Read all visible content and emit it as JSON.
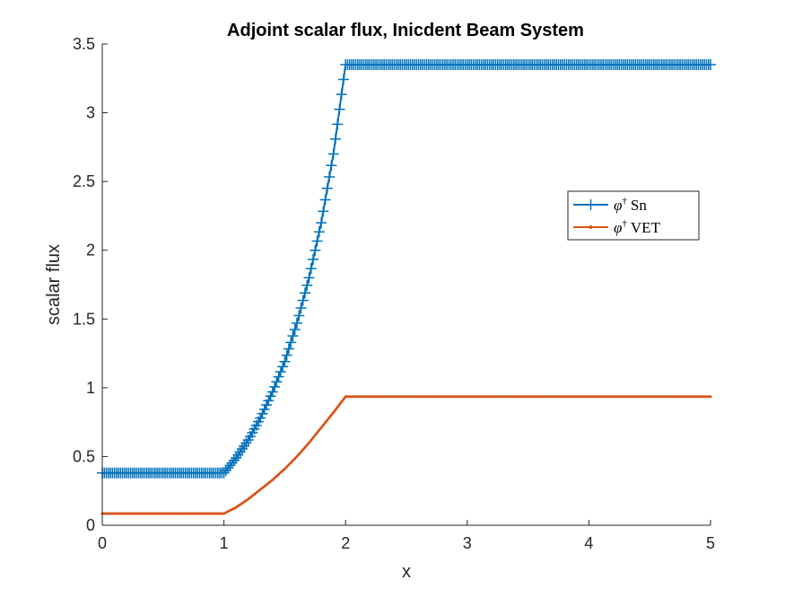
{
  "chart_data": {
    "type": "line",
    "title": "Adjoint scalar flux, Inicdent Beam System",
    "xlabel": "x",
    "ylabel": "scalar flux",
    "xlim": [
      0,
      5
    ],
    "ylim": [
      0,
      3.5
    ],
    "x_ticks": [
      0,
      1,
      2,
      3,
      4,
      5
    ],
    "x_tick_labels": [
      "0",
      "1",
      "2",
      "3",
      "4",
      "5"
    ],
    "y_ticks": [
      0,
      0.5,
      1,
      1.5,
      2,
      2.5,
      3,
      3.5
    ],
    "y_tick_labels": [
      "0",
      "0.5",
      "1",
      "1.5",
      "2",
      "2.5",
      "3",
      "3.5"
    ],
    "grid": false,
    "legend_position": "right",
    "series": [
      {
        "name": "Sn",
        "symbol": "φ",
        "color": "#0072BD",
        "marker": "+",
        "x": [
          0,
          1,
          1.1,
          1.2,
          1.3,
          1.4,
          1.5,
          1.6,
          1.7,
          1.8,
          1.9,
          2,
          5
        ],
        "y": [
          0.38,
          0.38,
          0.49,
          0.62,
          0.78,
          0.97,
          1.19,
          1.47,
          1.8,
          2.2,
          2.7,
          3.35,
          3.35
        ]
      },
      {
        "name": "VET",
        "symbol": "φ",
        "color": "#D95319",
        "marker": ".",
        "x": [
          0,
          1,
          1.1,
          1.2,
          1.3,
          1.4,
          1.5,
          1.6,
          1.7,
          1.8,
          1.9,
          2,
          5
        ],
        "y": [
          0.085,
          0.085,
          0.13,
          0.19,
          0.26,
          0.33,
          0.41,
          0.5,
          0.6,
          0.71,
          0.82,
          0.935,
          0.935
        ]
      }
    ]
  }
}
